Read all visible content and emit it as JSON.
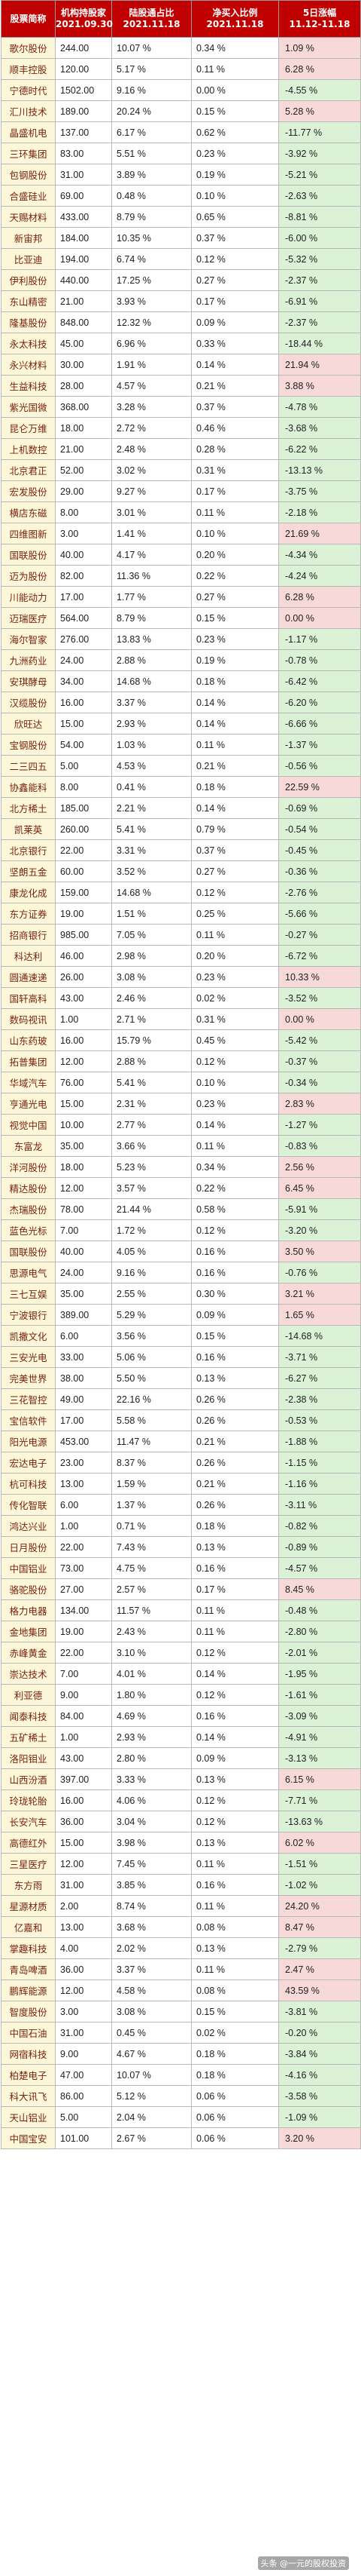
{
  "table": {
    "headers": [
      {
        "l1": "股票简称",
        "l2": ""
      },
      {
        "l1": "机构持股家",
        "l2": "2021.09.30"
      },
      {
        "l1": "陆股通占比",
        "l2": "2021.11.18"
      },
      {
        "l1": "净买入比例",
        "l2": "2021.11.18"
      },
      {
        "l1": "5日涨幅",
        "l2": "11.12-11.18"
      }
    ],
    "rows": [
      [
        "歌尔股份",
        "244.00",
        "10.07 %",
        "0.34 %",
        "1.09 %"
      ],
      [
        "顺丰控股",
        "120.00",
        "5.17 %",
        "0.11 %",
        "6.28 %"
      ],
      [
        "宁德时代",
        "1502.00",
        "9.16 %",
        "0.00 %",
        "-4.55 %"
      ],
      [
        "汇川技术",
        "189.00",
        "20.24 %",
        "0.15 %",
        "5.28 %"
      ],
      [
        "晶盛机电",
        "137.00",
        "6.17 %",
        "0.62 %",
        "-11.77 %"
      ],
      [
        "三环集团",
        "83.00",
        "5.51 %",
        "0.23 %",
        "-3.92 %"
      ],
      [
        "包钢股份",
        "31.00",
        "3.89 %",
        "0.19 %",
        "-5.21 %"
      ],
      [
        "合盛硅业",
        "69.00",
        "0.48 %",
        "0.10 %",
        "-2.63 %"
      ],
      [
        "天赐材料",
        "433.00",
        "8.79 %",
        "0.65 %",
        "-8.81 %"
      ],
      [
        "新宙邦",
        "184.00",
        "10.35 %",
        "0.37 %",
        "-6.00 %"
      ],
      [
        "比亚迪",
        "194.00",
        "6.74 %",
        "0.12 %",
        "-5.32 %"
      ],
      [
        "伊利股份",
        "440.00",
        "17.25 %",
        "0.27 %",
        "-2.37 %"
      ],
      [
        "东山精密",
        "21.00",
        "3.93 %",
        "0.17 %",
        "-6.91 %"
      ],
      [
        "隆基股份",
        "848.00",
        "12.32 %",
        "0.09 %",
        "-2.37 %"
      ],
      [
        "永太科技",
        "45.00",
        "6.96 %",
        "0.33 %",
        "-18.44 %"
      ],
      [
        "永兴材料",
        "30.00",
        "1.91 %",
        "0.14 %",
        "21.94 %"
      ],
      [
        "生益科技",
        "28.00",
        "4.57 %",
        "0.21 %",
        "3.88 %"
      ],
      [
        "紫光国微",
        "368.00",
        "3.28 %",
        "0.37 %",
        "-4.78 %"
      ],
      [
        "昆仑万维",
        "18.00",
        "2.72 %",
        "0.46 %",
        "-3.68 %"
      ],
      [
        "上机数控",
        "21.00",
        "2.48 %",
        "0.28 %",
        "-6.22 %"
      ],
      [
        "北京君正",
        "52.00",
        "3.02 %",
        "0.31 %",
        "-13.13 %"
      ],
      [
        "宏发股份",
        "29.00",
        "9.27 %",
        "0.17 %",
        "-3.75 %"
      ],
      [
        "横店东磁",
        "8.00",
        "3.01 %",
        "0.11 %",
        "-2.18 %"
      ],
      [
        "四维图新",
        "3.00",
        "1.41 %",
        "0.10 %",
        "21.69 %"
      ],
      [
        "国联股份",
        "40.00",
        "4.17 %",
        "0.20 %",
        "-4.34 %"
      ],
      [
        "迈为股份",
        "82.00",
        "11.36 %",
        "0.22 %",
        "-4.24 %"
      ],
      [
        "川能动力",
        "17.00",
        "1.77 %",
        "0.27 %",
        "6.28 %"
      ],
      [
        "迈瑞医疗",
        "564.00",
        "8.79 %",
        "0.15 %",
        "0.00 %"
      ],
      [
        "海尔智家",
        "276.00",
        "13.83 %",
        "0.23 %",
        "-1.17 %"
      ],
      [
        "九洲药业",
        "24.00",
        "2.88 %",
        "0.19 %",
        "-0.78 %"
      ],
      [
        "安琪酵母",
        "34.00",
        "14.68 %",
        "0.18 %",
        "-6.42 %"
      ],
      [
        "汉缆股份",
        "16.00",
        "3.37 %",
        "0.14 %",
        "-6.20 %"
      ],
      [
        "欣旺达",
        "15.00",
        "2.93 %",
        "0.14 %",
        "-6.66 %"
      ],
      [
        "宝钢股份",
        "54.00",
        "1.03 %",
        "0.11 %",
        "-1.37 %"
      ],
      [
        "二三四五",
        "5.00",
        "4.53 %",
        "0.21 %",
        "-0.56 %"
      ],
      [
        "协鑫能科",
        "8.00",
        "0.41 %",
        "0.18 %",
        "22.59 %"
      ],
      [
        "北方稀土",
        "185.00",
        "2.21 %",
        "0.14 %",
        "-0.69 %"
      ],
      [
        "凯莱英",
        "260.00",
        "5.41 %",
        "0.79 %",
        "-0.54 %"
      ],
      [
        "北京银行",
        "22.00",
        "3.31 %",
        "0.37 %",
        "-0.45 %"
      ],
      [
        "坚朗五金",
        "60.00",
        "3.52 %",
        "0.27 %",
        "-0.36 %"
      ],
      [
        "康龙化成",
        "159.00",
        "14.68 %",
        "0.12 %",
        "-2.76 %"
      ],
      [
        "东方证券",
        "19.00",
        "1.51 %",
        "0.25 %",
        "-5.66 %"
      ],
      [
        "招商银行",
        "985.00",
        "7.05 %",
        "0.11 %",
        "-0.27 %"
      ],
      [
        "科达利",
        "46.00",
        "2.98 %",
        "0.20 %",
        "-6.72 %"
      ],
      [
        "圆通速递",
        "26.00",
        "3.08 %",
        "0.23 %",
        "10.33 %"
      ],
      [
        "国轩高科",
        "43.00",
        "2.46 %",
        "0.02 %",
        "-3.52 %"
      ],
      [
        "数码视讯",
        "1.00",
        "2.71 %",
        "0.31 %",
        "0.00 %"
      ],
      [
        "山东药玻",
        "16.00",
        "15.79 %",
        "0.45 %",
        "-5.42 %"
      ],
      [
        "拓普集团",
        "12.00",
        "2.88 %",
        "0.12 %",
        "-0.37 %"
      ],
      [
        "华域汽车",
        "76.00",
        "5.41 %",
        "0.10 %",
        "-0.34 %"
      ],
      [
        "亨通光电",
        "15.00",
        "2.31 %",
        "0.23 %",
        "2.83 %"
      ],
      [
        "视觉中国",
        "10.00",
        "2.77 %",
        "0.14 %",
        "-1.27 %"
      ],
      [
        "东富龙",
        "35.00",
        "3.66 %",
        "0.11 %",
        "-0.83 %"
      ],
      [
        "洋河股份",
        "18.00",
        "5.23 %",
        "0.34 %",
        "2.56 %"
      ],
      [
        "精达股份",
        "12.00",
        "3.57 %",
        "0.22 %",
        "6.45 %"
      ],
      [
        "杰瑞股份",
        "78.00",
        "21.44 %",
        "0.58 %",
        "-5.91 %"
      ],
      [
        "蓝色光标",
        "7.00",
        "1.72 %",
        "0.12 %",
        "-3.20 %"
      ],
      [
        "国联股份",
        "40.00",
        "4.05 %",
        "0.16 %",
        "3.50 %"
      ],
      [
        "思源电气",
        "24.00",
        "9.16 %",
        "0.16 %",
        "-0.76 %"
      ],
      [
        "三七互娱",
        "35.00",
        "2.55 %",
        "0.30 %",
        "3.21 %"
      ],
      [
        "宁波银行",
        "389.00",
        "5.29 %",
        "0.09 %",
        "1.65 %"
      ],
      [
        "凯撒文化",
        "6.00",
        "3.56 %",
        "0.15 %",
        "-14.68 %"
      ],
      [
        "三安光电",
        "33.00",
        "5.06 %",
        "0.16 %",
        "-3.71 %"
      ],
      [
        "完美世界",
        "38.00",
        "5.50 %",
        "0.13 %",
        "-6.27 %"
      ],
      [
        "三花智控",
        "49.00",
        "22.16 %",
        "0.26 %",
        "-2.38 %"
      ],
      [
        "宝信软件",
        "17.00",
        "5.58 %",
        "0.26 %",
        "-0.53 %"
      ],
      [
        "阳光电源",
        "453.00",
        "11.47 %",
        "0.21 %",
        "-1.88 %"
      ],
      [
        "宏达电子",
        "23.00",
        "8.37 %",
        "0.26 %",
        "-1.15 %"
      ],
      [
        "杭可科技",
        "13.00",
        "1.59 %",
        "0.21 %",
        "-1.16 %"
      ],
      [
        "传化智联",
        "6.00",
        "1.37 %",
        "0.26 %",
        "-3.11 %"
      ],
      [
        "鸿达兴业",
        "1.00",
        "0.71 %",
        "0.18 %",
        "-0.82 %"
      ],
      [
        "日月股份",
        "22.00",
        "7.43 %",
        "0.13 %",
        "-0.89 %"
      ],
      [
        "中国铝业",
        "73.00",
        "4.75 %",
        "0.16 %",
        "-4.57 %"
      ],
      [
        "骆驼股份",
        "27.00",
        "2.57 %",
        "0.17 %",
        "8.45 %"
      ],
      [
        "格力电器",
        "134.00",
        "11.57 %",
        "0.11 %",
        "-0.48 %"
      ],
      [
        "金地集团",
        "19.00",
        "2.43 %",
        "0.11 %",
        "-2.80 %"
      ],
      [
        "赤峰黄金",
        "22.00",
        "3.10 %",
        "0.12 %",
        "-2.01 %"
      ],
      [
        "崇达技术",
        "7.00",
        "4.01 %",
        "0.14 %",
        "-1.95 %"
      ],
      [
        "利亚德",
        "9.00",
        "1.80 %",
        "0.12 %",
        "-1.61 %"
      ],
      [
        "闻泰科技",
        "84.00",
        "4.69 %",
        "0.16 %",
        "-3.09 %"
      ],
      [
        "五矿稀土",
        "1.00",
        "2.93 %",
        "0.14 %",
        "-4.91 %"
      ],
      [
        "洛阳钼业",
        "43.00",
        "2.80 %",
        "0.09 %",
        "-3.13 %"
      ],
      [
        "山西汾酒",
        "397.00",
        "3.33 %",
        "0.13 %",
        "6.15 %"
      ],
      [
        "玲珑轮胎",
        "16.00",
        "4.06 %",
        "0.12 %",
        "-7.71 %"
      ],
      [
        "长安汽车",
        "36.00",
        "3.04 %",
        "0.12 %",
        "-13.63 %"
      ],
      [
        "高德红外",
        "15.00",
        "3.98 %",
        "0.13 %",
        "6.02 %"
      ],
      [
        "三星医疗",
        "12.00",
        "7.45 %",
        "0.11 %",
        "-1.51 %"
      ],
      [
        "东方雨",
        "31.00",
        "3.85 %",
        "0.16 %",
        "-1.02 %"
      ],
      [
        "星源材质",
        "2.00",
        "8.74 %",
        "0.11 %",
        "24.20 %"
      ],
      [
        "亿嘉和",
        "13.00",
        "3.68 %",
        "0.08 %",
        "8.47 %"
      ],
      [
        "掌趣科技",
        "4.00",
        "2.02 %",
        "0.13 %",
        "-2.79 %"
      ],
      [
        "青岛啤酒",
        "36.00",
        "3.37 %",
        "0.11 %",
        "2.47 %"
      ],
      [
        "鹏辉能源",
        "12.00",
        "4.58 %",
        "0.08 %",
        "43.59 %"
      ],
      [
        "智度股份",
        "3.00",
        "3.08 %",
        "0.15 %",
        "-3.81 %"
      ],
      [
        "中国石油",
        "31.00",
        "0.45 %",
        "0.02 %",
        "-0.20 %"
      ],
      [
        "网宿科技",
        "9.00",
        "4.67 %",
        "0.18 %",
        "-3.84 %"
      ],
      [
        "柏楚电子",
        "47.00",
        "10.07 %",
        "0.18 %",
        "-4.16 %"
      ],
      [
        "科大讯飞",
        "86.00",
        "5.12 %",
        "0.06 %",
        "-3.58 %"
      ],
      [
        "天山铝业",
        "5.00",
        "2.04 %",
        "0.06 %",
        "-1.09 %"
      ],
      [
        "中国宝安",
        "101.00",
        "2.67 %",
        "0.06 %",
        "3.20 %"
      ]
    ]
  },
  "watermark": "头条 @一元的股权投资",
  "colors": {
    "header_bg": "#c00000",
    "name_bg": "#fbf7d8",
    "pos_bg": "#f7d9d9",
    "neg_bg": "#dcf2d6"
  }
}
